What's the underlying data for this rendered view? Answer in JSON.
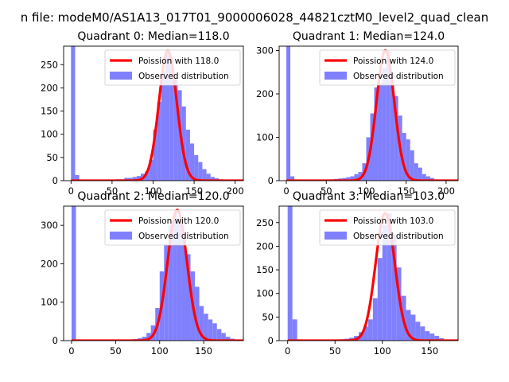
{
  "figure": {
    "suptitle": "n file: modeM0/AS1A13_017T01_9000006028_44821cztM0_level2_quad_clean"
  },
  "colors": {
    "hist": "#8080ff",
    "poisson": "#ff0000",
    "axes": "#000000"
  },
  "chart_data": [
    {
      "type": "bar",
      "title": "Quadrant 0: Median=118.0",
      "xlim": [
        -9,
        210
      ],
      "ylim": [
        0,
        290
      ],
      "xticks": [
        0,
        50,
        100,
        150,
        200
      ],
      "yticks": [
        0,
        50,
        100,
        150,
        200,
        250
      ],
      "bin_width": 5,
      "hist_x": [
        0,
        5,
        10,
        15,
        20,
        25,
        30,
        35,
        40,
        45,
        50,
        55,
        60,
        65,
        70,
        75,
        80,
        85,
        90,
        95,
        100,
        105,
        110,
        115,
        120,
        125,
        130,
        135,
        140,
        145,
        150,
        155,
        160,
        165,
        170,
        175,
        180,
        185,
        190,
        195,
        200
      ],
      "hist_values": [
        300,
        12,
        2,
        1,
        1,
        1,
        1,
        1,
        1,
        1,
        2,
        3,
        3,
        6,
        6,
        8,
        10,
        15,
        20,
        45,
        110,
        170,
        235,
        280,
        265,
        225,
        195,
        160,
        110,
        80,
        55,
        40,
        25,
        15,
        8,
        5,
        3,
        2,
        1,
        1,
        1
      ],
      "poisson_mean": 118.0,
      "poisson_peak": 280,
      "legend": [
        "Poission with 118.0",
        "Observed distribution"
      ],
      "legend_position": "upper-right"
    },
    {
      "type": "bar",
      "title": "Quadrant 1: Median=124.0",
      "xlim": [
        -9,
        215
      ],
      "ylim": [
        0,
        310
      ],
      "xticks": [
        0,
        50,
        100,
        150,
        200
      ],
      "yticks": [
        0,
        100,
        200,
        300
      ],
      "bin_width": 5,
      "hist_x": [
        0,
        5,
        10,
        15,
        20,
        25,
        30,
        35,
        40,
        45,
        50,
        55,
        60,
        65,
        70,
        75,
        80,
        85,
        90,
        95,
        100,
        105,
        110,
        115,
        120,
        125,
        130,
        135,
        140,
        145,
        150,
        155,
        160,
        165,
        170,
        175,
        180,
        185,
        190,
        195,
        200,
        205
      ],
      "hist_values": [
        310,
        10,
        2,
        1,
        1,
        1,
        1,
        1,
        1,
        1,
        2,
        3,
        4,
        5,
        6,
        8,
        10,
        15,
        20,
        40,
        100,
        155,
        215,
        225,
        260,
        300,
        230,
        195,
        150,
        110,
        95,
        70,
        40,
        30,
        15,
        10,
        6,
        3,
        2,
        1,
        1,
        1
      ],
      "poisson_mean": 124.0,
      "poisson_peak": 300,
      "legend": [
        "Poission with 124.0",
        "Observed distribution"
      ],
      "legend_position": "upper-right"
    },
    {
      "type": "bar",
      "title": "Quadrant 2: Median=120.0",
      "xlim": [
        -9,
        195
      ],
      "ylim": [
        0,
        350
      ],
      "xticks": [
        0,
        50,
        100,
        150
      ],
      "yticks": [
        0,
        100,
        200,
        300
      ],
      "bin_width": 5,
      "hist_x": [
        0,
        5,
        10,
        15,
        20,
        25,
        30,
        35,
        40,
        45,
        50,
        55,
        60,
        65,
        70,
        75,
        80,
        85,
        90,
        95,
        100,
        105,
        110,
        115,
        120,
        125,
        130,
        135,
        140,
        145,
        150,
        155,
        160,
        165,
        170,
        175,
        180,
        185
      ],
      "hist_values": [
        360,
        2,
        1,
        1,
        1,
        1,
        1,
        1,
        1,
        1,
        1,
        1,
        2,
        3,
        4,
        6,
        10,
        20,
        40,
        85,
        180,
        250,
        300,
        330,
        315,
        280,
        225,
        180,
        140,
        90,
        70,
        55,
        45,
        30,
        20,
        10,
        5,
        2
      ],
      "poisson_mean": 120.0,
      "poisson_peak": 340,
      "legend": [
        "Poission with 120.0",
        "Observed distribution"
      ],
      "legend_position": "upper-right"
    },
    {
      "type": "bar",
      "title": "Quadrant 3: Median=103.0",
      "xlim": [
        -9,
        180
      ],
      "ylim": [
        0,
        285
      ],
      "xticks": [
        0,
        50,
        100,
        150
      ],
      "yticks": [
        0,
        50,
        100,
        150,
        200,
        250
      ],
      "bin_width": 5,
      "hist_x": [
        0,
        5,
        10,
        15,
        20,
        25,
        30,
        35,
        40,
        45,
        50,
        55,
        60,
        65,
        70,
        75,
        80,
        85,
        90,
        95,
        100,
        105,
        110,
        115,
        120,
        125,
        130,
        135,
        140,
        145,
        150,
        155,
        160,
        165,
        170
      ],
      "hist_values": [
        290,
        45,
        2,
        1,
        1,
        1,
        1,
        1,
        1,
        1,
        2,
        3,
        4,
        6,
        10,
        18,
        30,
        45,
        90,
        175,
        245,
        270,
        225,
        155,
        95,
        65,
        55,
        40,
        30,
        20,
        15,
        10,
        5,
        2,
        1
      ],
      "poisson_mean": 103.0,
      "poisson_peak": 270,
      "legend": [
        "Poission with 103.0",
        "Observed distribution"
      ],
      "legend_position": "upper-right"
    }
  ]
}
